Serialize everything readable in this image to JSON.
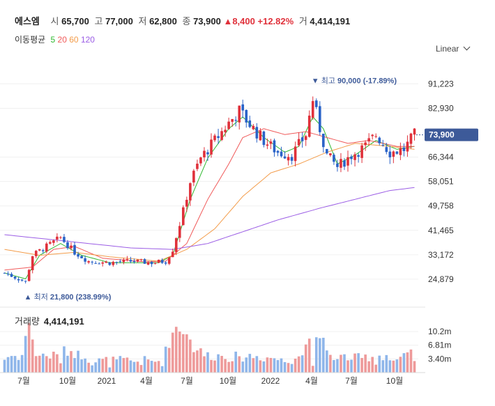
{
  "header": {
    "name": "에스엠",
    "open_label": "시",
    "open": "65,700",
    "high_label": "고",
    "high": "77,000",
    "low_label": "저",
    "low": "62,800",
    "close_label": "종",
    "close": "73,900",
    "change_arrow": "▲",
    "change": "8,400",
    "change_pct": "+12.82%",
    "volume_label": "거",
    "volume": "4,414,191"
  },
  "moving_average": {
    "label": "이동평균",
    "periods": [
      {
        "label": "5",
        "color": "#2fb82f"
      },
      {
        "label": "20",
        "color": "#f05a5a"
      },
      {
        "label": "60",
        "color": "#f39c4a"
      },
      {
        "label": "120",
        "color": "#9b5de5"
      }
    ]
  },
  "scale_selector": {
    "label": "Linear",
    "icon": "chevron-down-icon"
  },
  "volume_panel": {
    "label": "거래량",
    "value": "4,414,191"
  },
  "chart_data": {
    "type": "candlestick",
    "price_axis_ticks": [
      "91,223",
      "82,930",
      "66,344",
      "58,051",
      "49,758",
      "41,465",
      "33,172",
      "24,879"
    ],
    "price_tick_values": [
      91223,
      82930,
      66344,
      58051,
      49758,
      41465,
      33172,
      24879
    ],
    "ylim": [
      18000,
      97000
    ],
    "current_price": {
      "label": "73,900",
      "value": 73900,
      "color": "#3d5a99"
    },
    "high_annotation": {
      "label": "최고",
      "text": "90,000 (-17.89%)",
      "value": 90000,
      "marker": "▼"
    },
    "low_annotation": {
      "label": "최저",
      "text": "21,800 (238.99%)",
      "value": 21800,
      "marker": "▲"
    },
    "x_ticks": [
      "7월",
      "10월",
      "2021",
      "4월",
      "7월",
      "10월",
      "2022",
      "4월",
      "7월",
      "10월"
    ],
    "volume_axis_ticks": [
      "10.2m",
      "6.81m",
      "3.40m"
    ],
    "volume_tick_values": [
      10200000,
      6810000,
      3400000
    ],
    "volume_max": 13000000,
    "colors": {
      "up": "#e0313b",
      "down": "#2a63c8",
      "vol_up": "#ee9a9a",
      "vol_down": "#8fb6ea"
    },
    "candle_count": 118,
    "anchors": [
      [
        0,
        27000
      ],
      [
        6,
        24000
      ],
      [
        8,
        33000
      ],
      [
        12,
        36000
      ],
      [
        16,
        39000
      ],
      [
        20,
        34000
      ],
      [
        24,
        31000
      ],
      [
        30,
        30500
      ],
      [
        36,
        31000
      ],
      [
        42,
        30500
      ],
      [
        46,
        31000
      ],
      [
        48,
        35000
      ],
      [
        51,
        48000
      ],
      [
        53,
        58000
      ],
      [
        56,
        66000
      ],
      [
        60,
        72000
      ],
      [
        64,
        78000
      ],
      [
        67,
        82000
      ],
      [
        71,
        76000
      ],
      [
        74,
        72000
      ],
      [
        78,
        68000
      ],
      [
        82,
        67000
      ],
      [
        86,
        74000
      ],
      [
        88,
        86000
      ],
      [
        90,
        76000
      ],
      [
        92,
        67000
      ],
      [
        95,
        63000
      ],
      [
        99,
        67000
      ],
      [
        103,
        70000
      ],
      [
        106,
        74000
      ],
      [
        110,
        68000
      ],
      [
        114,
        69000
      ],
      [
        117,
        73900
      ]
    ],
    "ma_anchors": {
      "ma5": [
        [
          0,
          27000
        ],
        [
          6,
          25000
        ],
        [
          10,
          33000
        ],
        [
          16,
          37000
        ],
        [
          22,
          33000
        ],
        [
          30,
          30500
        ],
        [
          44,
          30500
        ],
        [
          48,
          33000
        ],
        [
          53,
          52000
        ],
        [
          58,
          66000
        ],
        [
          64,
          76000
        ],
        [
          68,
          80000
        ],
        [
          74,
          73000
        ],
        [
          80,
          68000
        ],
        [
          84,
          70000
        ],
        [
          88,
          80000
        ],
        [
          91,
          76000
        ],
        [
          95,
          64000
        ],
        [
          100,
          67000
        ],
        [
          106,
          72000
        ],
        [
          112,
          69000
        ],
        [
          117,
          70000
        ]
      ],
      "ma20": [
        [
          0,
          28000
        ],
        [
          8,
          29000
        ],
        [
          14,
          35000
        ],
        [
          20,
          36000
        ],
        [
          28,
          32000
        ],
        [
          40,
          30800
        ],
        [
          46,
          31000
        ],
        [
          52,
          37000
        ],
        [
          58,
          52000
        ],
        [
          64,
          64000
        ],
        [
          68,
          73000
        ],
        [
          74,
          76000
        ],
        [
          80,
          74000
        ],
        [
          86,
          75000
        ],
        [
          92,
          73000
        ],
        [
          98,
          71000
        ],
        [
          104,
          72000
        ],
        [
          112,
          70000
        ],
        [
          117,
          70000
        ]
      ],
      "ma60": [
        [
          0,
          35000
        ],
        [
          10,
          33000
        ],
        [
          20,
          34000
        ],
        [
          30,
          32500
        ],
        [
          44,
          31000
        ],
        [
          52,
          35000
        ],
        [
          60,
          42000
        ],
        [
          68,
          53000
        ],
        [
          76,
          61000
        ],
        [
          84,
          64000
        ],
        [
          92,
          68000
        ],
        [
          100,
          71000
        ],
        [
          110,
          70000
        ],
        [
          117,
          69000
        ]
      ],
      "ma120": [
        [
          0,
          40000
        ],
        [
          12,
          38500
        ],
        [
          24,
          37000
        ],
        [
          36,
          35500
        ],
        [
          48,
          35000
        ],
        [
          58,
          37000
        ],
        [
          68,
          41000
        ],
        [
          78,
          45000
        ],
        [
          90,
          49000
        ],
        [
          100,
          52000
        ],
        [
          110,
          55000
        ],
        [
          117,
          56000
        ]
      ]
    }
  }
}
